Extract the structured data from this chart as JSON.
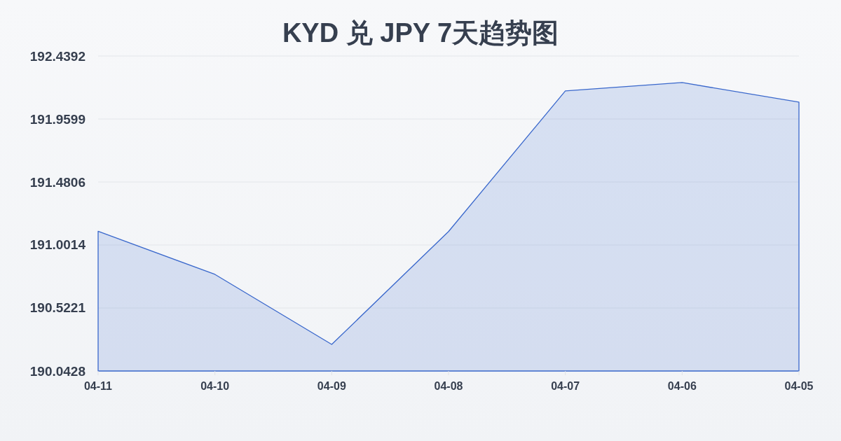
{
  "chart_data": {
    "type": "area",
    "title": "KYD 兑 JPY 7天趋势图",
    "categories": [
      "04-11",
      "04-10",
      "04-09",
      "04-08",
      "04-07",
      "04-06",
      "04-05"
    ],
    "series": [
      {
        "color": "#3a68cc",
        "values": [
          191.106,
          190.778,
          190.245,
          191.104,
          192.174,
          192.237,
          192.088
        ]
      }
    ],
    "ylim": [
      190.0428,
      192.4392
    ],
    "yticks": [
      190.0428,
      190.5221,
      191.0014,
      191.4806,
      191.9599,
      192.4392
    ],
    "grid": "y"
  }
}
